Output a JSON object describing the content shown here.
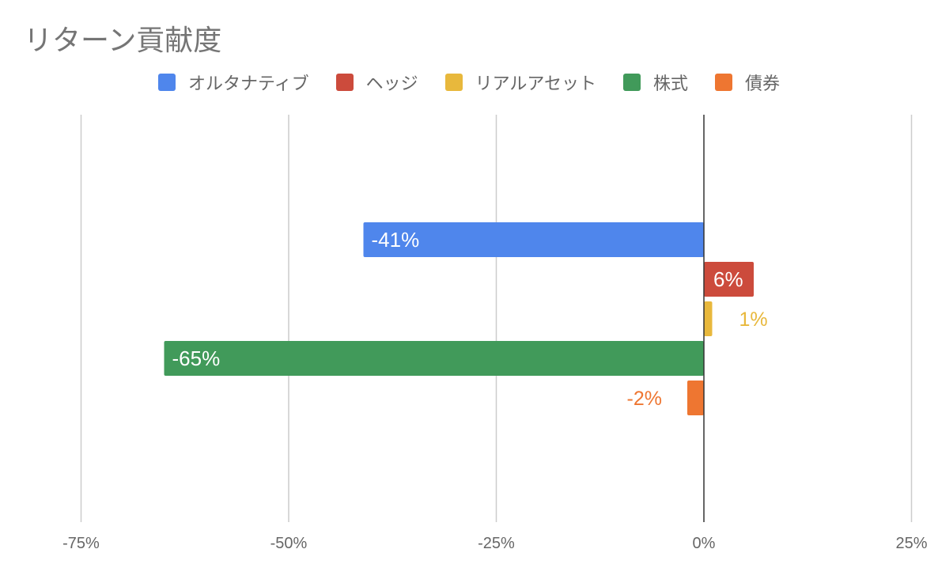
{
  "chart_data": {
    "type": "bar",
    "orientation": "horizontal",
    "title": "リターン貢献度",
    "legend_position": "top",
    "grid": true,
    "xlim": [
      -75,
      25
    ],
    "x_ticks": [
      -75,
      -50,
      -25,
      0,
      25
    ],
    "x_tick_labels": [
      "-75%",
      "-50%",
      "-25%",
      "0%",
      "25%"
    ],
    "series": [
      {
        "name": "オルタナティブ",
        "value": -41,
        "label": "-41%",
        "color": "#4f86ec"
      },
      {
        "name": "ヘッジ",
        "value": 6,
        "label": "6%",
        "color": "#cc4b3c"
      },
      {
        "name": "リアルアセット",
        "value": 1,
        "label": "1%",
        "color": "#e8b83c"
      },
      {
        "name": "株式",
        "value": -65,
        "label": "-65%",
        "color": "#419a5a"
      },
      {
        "name": "債券",
        "value": -2,
        "label": "-2%",
        "color": "#ee7631"
      }
    ]
  }
}
